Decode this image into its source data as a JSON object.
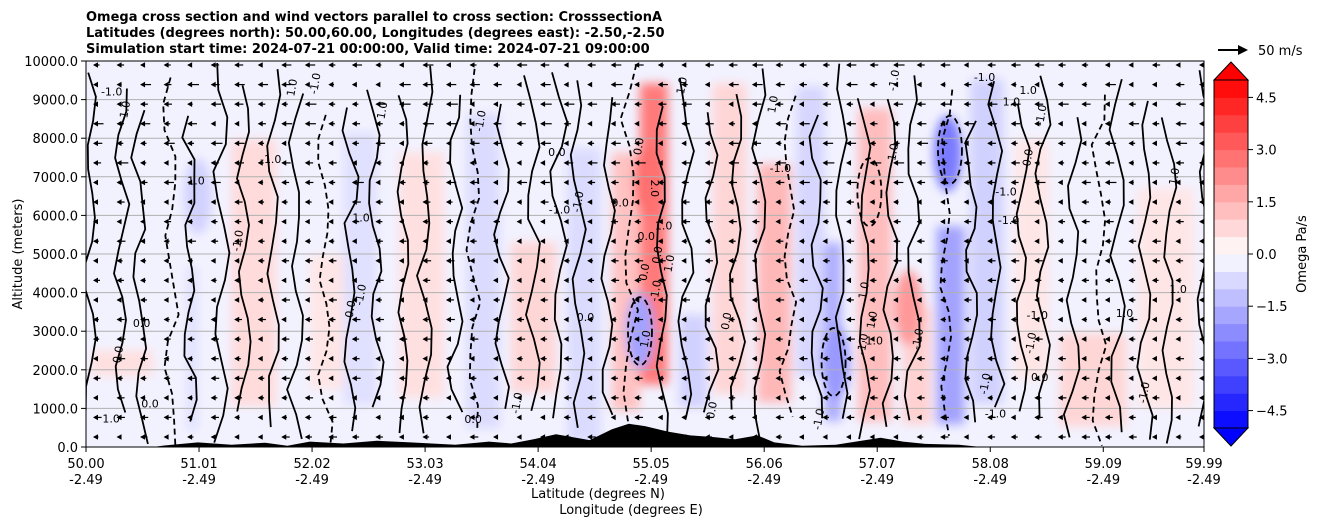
{
  "chart_data": {
    "type": "heatmap",
    "title_lines": [
      "Omega cross section and wind vectors parallel to cross section: CrosssectionA",
      "Latitudes (degrees north): 50.00,60.00, Longitudes (degrees east): -2.50,-2.50",
      "Simulation start time: 2024-07-21 00:00:00, Valid time: 2024-07-21 09:00:00"
    ],
    "ylabel": "Altitude (meters)",
    "xlabel_line1": "Latitude (degrees N)",
    "xlabel_line2": "Longitude (degrees E)",
    "y_ticks": [
      "0.0",
      "1000.0",
      "2000.0",
      "3000.0",
      "4000.0",
      "5000.0",
      "6000.0",
      "7000.0",
      "8000.0",
      "9000.0",
      "10000.0"
    ],
    "ylim": [
      0,
      10000
    ],
    "x_ticks": [
      {
        "lat": "50.00",
        "lon": "-2.49"
      },
      {
        "lat": "51.01",
        "lon": "-2.49"
      },
      {
        "lat": "52.02",
        "lon": "-2.49"
      },
      {
        "lat": "53.03",
        "lon": "-2.49"
      },
      {
        "lat": "54.04",
        "lon": "-2.49"
      },
      {
        "lat": "55.05",
        "lon": "-2.49"
      },
      {
        "lat": "56.06",
        "lon": "-2.49"
      },
      {
        "lat": "57.07",
        "lon": "-2.49"
      },
      {
        "lat": "58.08",
        "lon": "-2.49"
      },
      {
        "lat": "59.09",
        "lon": "-2.49"
      },
      {
        "lat": "59.99",
        "lon": "-2.49"
      }
    ],
    "xlim": [
      50.0,
      59.99
    ],
    "horizontal_grid": true,
    "colorbar": {
      "label": "Omega Pa/s",
      "ticks": [
        "4.5",
        "3.0",
        "1.5",
        "0.0",
        "−1.5",
        "−3.0",
        "−4.5"
      ],
      "tick_values": [
        4.5,
        3.0,
        1.5,
        0.0,
        -1.5,
        -3.0,
        -4.5
      ],
      "range": [
        -5.0,
        5.0
      ],
      "colormap": "bwr",
      "extend": "both"
    },
    "reference_vector": {
      "label": "50 m/s"
    },
    "contour_labels": [
      "0.0",
      "1.0",
      "-1.0",
      "2.0"
    ],
    "terrain": "black filled orography along the bottom, peaking near 54.8-55.2 N at about 600 m",
    "colors": {
      "positive": "#ff0000",
      "negative": "#0000ff",
      "contour": "#000000",
      "terrain": "#000000",
      "grid": "#b0b0b0"
    }
  }
}
